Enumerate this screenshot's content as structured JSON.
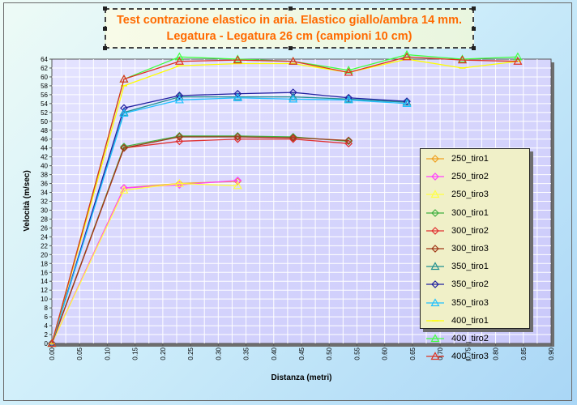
{
  "chart_data": {
    "type": "line",
    "title": [
      "Test contrazione elastico in aria. Elastico giallo/ambra 14 mm.",
      "Legatura - Legatura 26 cm (campioni 10 cm)"
    ],
    "xlabel": "Distanza (metri)",
    "ylabel": "Velocità (m/sec)",
    "xlim": [
      0,
      0.9
    ],
    "ylim": [
      0,
      64
    ],
    "xticks": [
      "0.00",
      "0.05",
      "0.10",
      "0.15",
      "0.20",
      "0.25",
      "0.30",
      "0.35",
      "0.40",
      "0.45",
      "0.50",
      "0.55",
      "0.60",
      "0.65",
      "0.70",
      "0.75",
      "0.80",
      "0.85",
      "0.90"
    ],
    "yticks": [
      "0",
      "2",
      "4",
      "6",
      "8",
      "10",
      "12",
      "14",
      "16",
      "18",
      "20",
      "22",
      "24",
      "26",
      "28",
      "30",
      "32",
      "34",
      "36",
      "38",
      "40",
      "42",
      "44",
      "46",
      "48",
      "50",
      "52",
      "54",
      "56",
      "58",
      "60",
      "62",
      "64"
    ],
    "grid": true,
    "legend_position": "right",
    "series": [
      {
        "name": "250_tiro1",
        "color": "#f0a020",
        "marker": "diamond",
        "x": [
          0,
          0.13,
          0.23,
          0.335
        ],
        "y": [
          0,
          35,
          36,
          36.5
        ]
      },
      {
        "name": "250_tiro2",
        "color": "#ff40ff",
        "marker": "diamond",
        "x": [
          0,
          0.13,
          0.23,
          0.335
        ],
        "y": [
          0,
          35,
          35.7,
          36.7
        ]
      },
      {
        "name": "250_tiro3",
        "color": "#ffff40",
        "marker": "triangle",
        "x": [
          0,
          0.13,
          0.23,
          0.335
        ],
        "y": [
          0,
          34.5,
          36,
          35.5
        ]
      },
      {
        "name": "300_tiro1",
        "color": "#40b040",
        "marker": "diamond",
        "x": [
          0,
          0.13,
          0.23,
          0.335,
          0.435,
          0.535
        ],
        "y": [
          0,
          44.3,
          46.7,
          46.7,
          46.5,
          45.5
        ]
      },
      {
        "name": "300_tiro2",
        "color": "#e03030",
        "marker": "diamond",
        "x": [
          0,
          0.13,
          0.23,
          0.335,
          0.435,
          0.535
        ],
        "y": [
          0,
          44,
          45.5,
          46,
          46,
          45
        ]
      },
      {
        "name": "300_tiro3",
        "color": "#a03818",
        "marker": "diamond",
        "x": [
          0,
          0.13,
          0.23,
          0.335,
          0.435,
          0.535
        ],
        "y": [
          0,
          44,
          46.5,
          46.5,
          46.3,
          45.7
        ]
      },
      {
        "name": "350_tiro1",
        "color": "#209090",
        "marker": "triangle",
        "x": [
          0,
          0.13,
          0.23,
          0.335,
          0.435,
          0.535,
          0.64
        ],
        "y": [
          0,
          52,
          55.5,
          55.5,
          55.5,
          55,
          54.3
        ]
      },
      {
        "name": "350_tiro2",
        "color": "#2020a0",
        "marker": "diamond",
        "x": [
          0,
          0.13,
          0.23,
          0.335,
          0.435,
          0.535,
          0.64
        ],
        "y": [
          0,
          53,
          55.8,
          56.2,
          56.5,
          55.3,
          54.5
        ]
      },
      {
        "name": "350_tiro3",
        "color": "#20c0ff",
        "marker": "triangle",
        "x": [
          0,
          0.13,
          0.23,
          0.335,
          0.435,
          0.535,
          0.64
        ],
        "y": [
          0,
          51.8,
          54.8,
          55.3,
          55,
          54.8,
          54
        ]
      },
      {
        "name": "400_tiro1",
        "color": "#ffff00",
        "marker": "line",
        "x": [
          0,
          0.13,
          0.23,
          0.335,
          0.435,
          0.535,
          0.64,
          0.74,
          0.84
        ],
        "y": [
          0,
          58,
          62.5,
          63,
          63,
          61,
          64,
          62,
          63.5
        ]
      },
      {
        "name": "400_tiro2",
        "color": "#40ff40",
        "marker": "triangle",
        "x": [
          0,
          0.13,
          0.23,
          0.335,
          0.435,
          0.535,
          0.64,
          0.74,
          0.84
        ],
        "y": [
          0,
          59.5,
          64.5,
          64,
          63.5,
          61.5,
          65,
          64,
          64.5
        ]
      },
      {
        "name": "400_tiro3",
        "color": "#e03020",
        "marker": "triangle",
        "x": [
          0,
          0.13,
          0.23,
          0.335,
          0.435,
          0.535,
          0.64,
          0.74,
          0.84
        ],
        "y": [
          0,
          59.5,
          63.5,
          63.8,
          63.5,
          61,
          64.5,
          63.8,
          63.5
        ]
      }
    ]
  }
}
